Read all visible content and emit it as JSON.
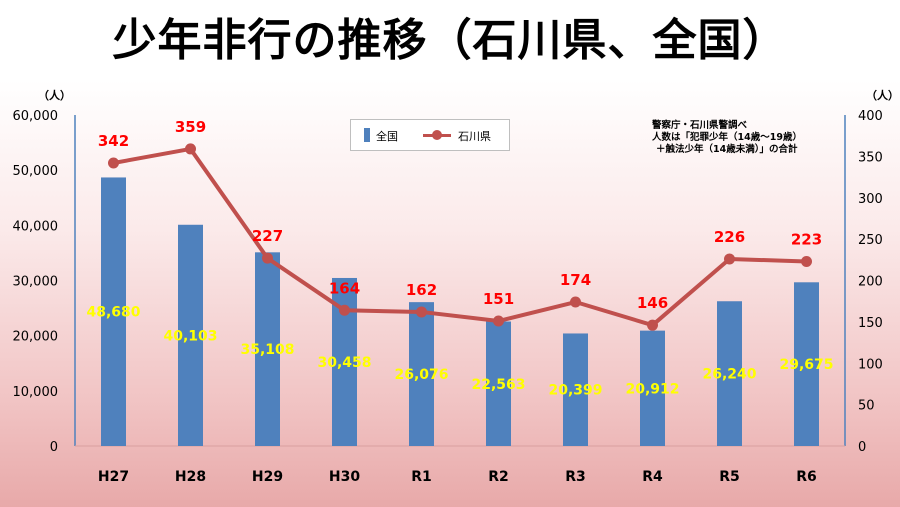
{
  "page": {
    "title": "少年非行の推移（石川県、全国）"
  },
  "source_note": {
    "line1": "警察庁・石川県警調べ",
    "line2": "人数は「犯罪少年（14歳～19歳）",
    "line3": "＋触法少年（14歳未満）」の合計"
  },
  "legend": {
    "bar_label": "全国",
    "line_label": "石川県"
  },
  "axes": {
    "left_unit": "（人）",
    "right_unit": "（人）",
    "left_ticks": [
      "60,000",
      "50,000",
      "40,000",
      "30,000",
      "20,000",
      "10,000",
      "0"
    ],
    "right_ticks": [
      "400",
      "350",
      "300",
      "250",
      "200",
      "150",
      "100",
      "50",
      "0"
    ]
  },
  "colors": {
    "bar": "#4f81bd",
    "line": "#c0504d",
    "bar_label": "#ffff00",
    "line_label": "#ff0000"
  },
  "chart_data": {
    "type": "bar",
    "categories": [
      "H27",
      "H28",
      "H29",
      "H30",
      "R1",
      "R2",
      "R3",
      "R4",
      "R5",
      "R6"
    ],
    "series": [
      {
        "name": "全国",
        "type": "bar",
        "axis": "left",
        "values": [
          48680,
          40103,
          35108,
          30458,
          26076,
          22563,
          20399,
          20912,
          26240,
          29675
        ],
        "labels": [
          "48,680",
          "40,103",
          "35,108",
          "30,458",
          "26,076",
          "22,563",
          "20,399",
          "20,912",
          "26,240",
          "29,675"
        ]
      },
      {
        "name": "石川県",
        "type": "line",
        "axis": "right",
        "values": [
          342,
          359,
          227,
          164,
          162,
          151,
          174,
          146,
          226,
          223
        ],
        "labels": [
          "342",
          "359",
          "227",
          "164",
          "162",
          "151",
          "174",
          "146",
          "226",
          "223"
        ]
      }
    ],
    "title": "少年非行の推移（石川県、全国）",
    "left_axis": {
      "ylim": [
        0,
        60000
      ],
      "unit": "（人）"
    },
    "right_axis": {
      "ylim": [
        0,
        400
      ],
      "unit": "（人）"
    },
    "grid": false,
    "legend_position": "top-center"
  }
}
